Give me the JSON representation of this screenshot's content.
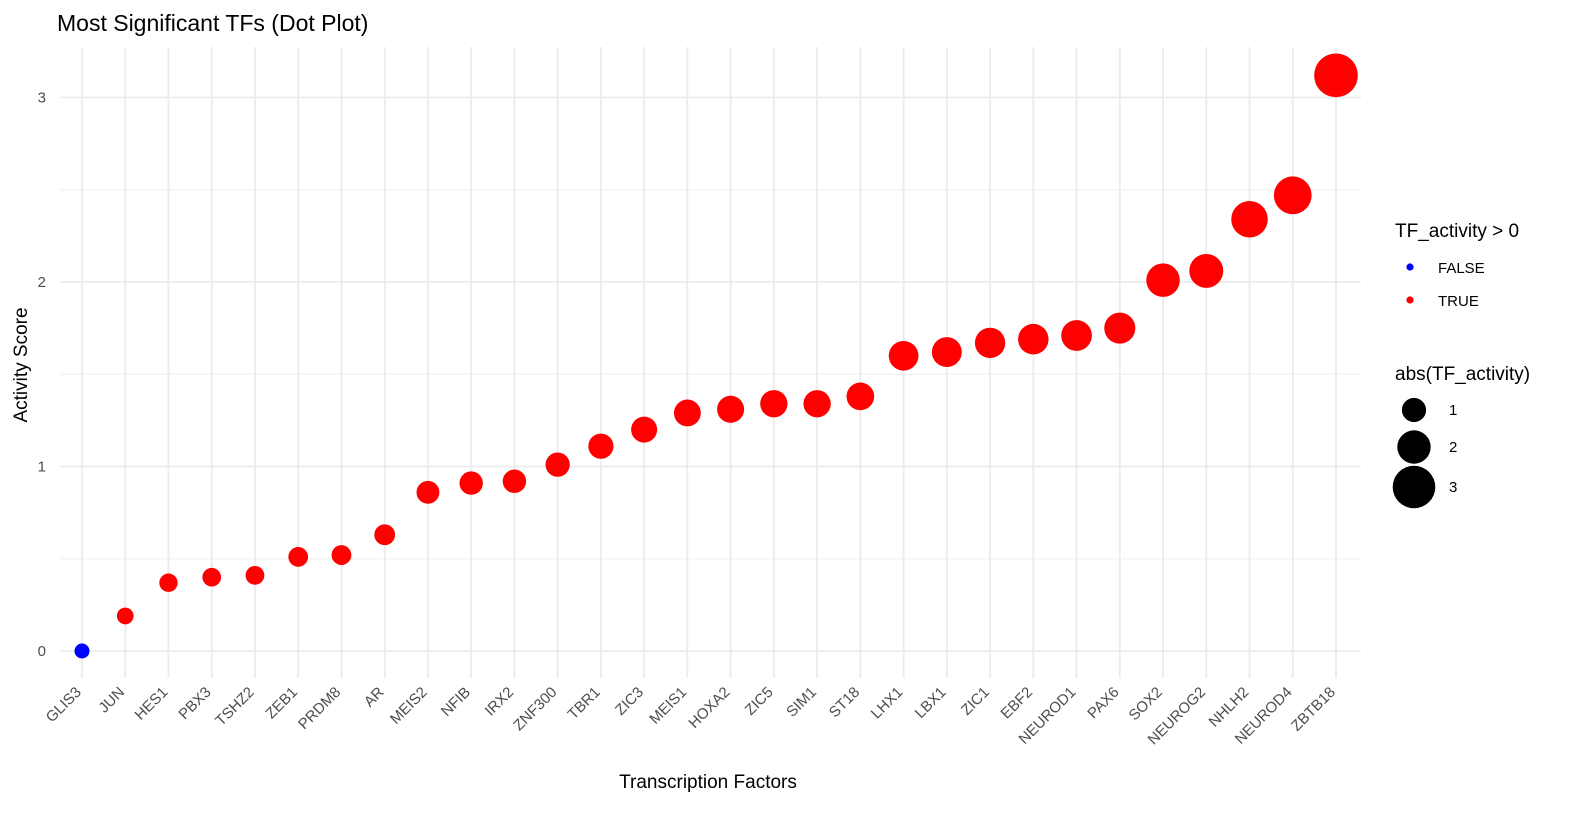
{
  "chart_data": {
    "type": "scatter",
    "title": "Most Significant TFs (Dot Plot)",
    "xlabel": "Transcription Factors",
    "ylabel": "Activity Score",
    "ylim": [
      -0.15,
      3.3
    ],
    "yticks": [
      0,
      1,
      2,
      3
    ],
    "grid": true,
    "categories": [
      "GLIS3",
      "JUN",
      "HES1",
      "PBX3",
      "TSHZ2",
      "ZEB1",
      "PRDM8",
      "AR",
      "MEIS2",
      "NFIB",
      "IRX2",
      "ZNF300",
      "TBR1",
      "ZIC3",
      "MEIS1",
      "HOXA2",
      "ZIC5",
      "SIM1",
      "ST18",
      "LHX1",
      "LBX1",
      "ZIC1",
      "EBF2",
      "NEUROD1",
      "PAX6",
      "SOX2",
      "NEUROG2",
      "NHLH2",
      "NEUROD4",
      "ZBTB18"
    ],
    "values": [
      0.0,
      0.19,
      0.37,
      0.4,
      0.41,
      0.51,
      0.52,
      0.63,
      0.86,
      0.91,
      0.92,
      1.01,
      1.11,
      1.2,
      1.29,
      1.31,
      1.34,
      1.34,
      1.38,
      1.6,
      1.62,
      1.67,
      1.69,
      1.71,
      1.75,
      2.01,
      2.06,
      2.34,
      2.47,
      3.12
    ],
    "color_legend": {
      "title": "TF_activity > 0",
      "entries": [
        {
          "label": "FALSE",
          "color": "#0000ff"
        },
        {
          "label": "TRUE",
          "color": "#ff0000"
        }
      ]
    },
    "size_legend": {
      "title": "abs(TF_activity)",
      "entries": [
        {
          "label": "1",
          "value": 1
        },
        {
          "label": "2",
          "value": 2
        },
        {
          "label": "3",
          "value": 3
        }
      ]
    },
    "legend_position": "right"
  }
}
